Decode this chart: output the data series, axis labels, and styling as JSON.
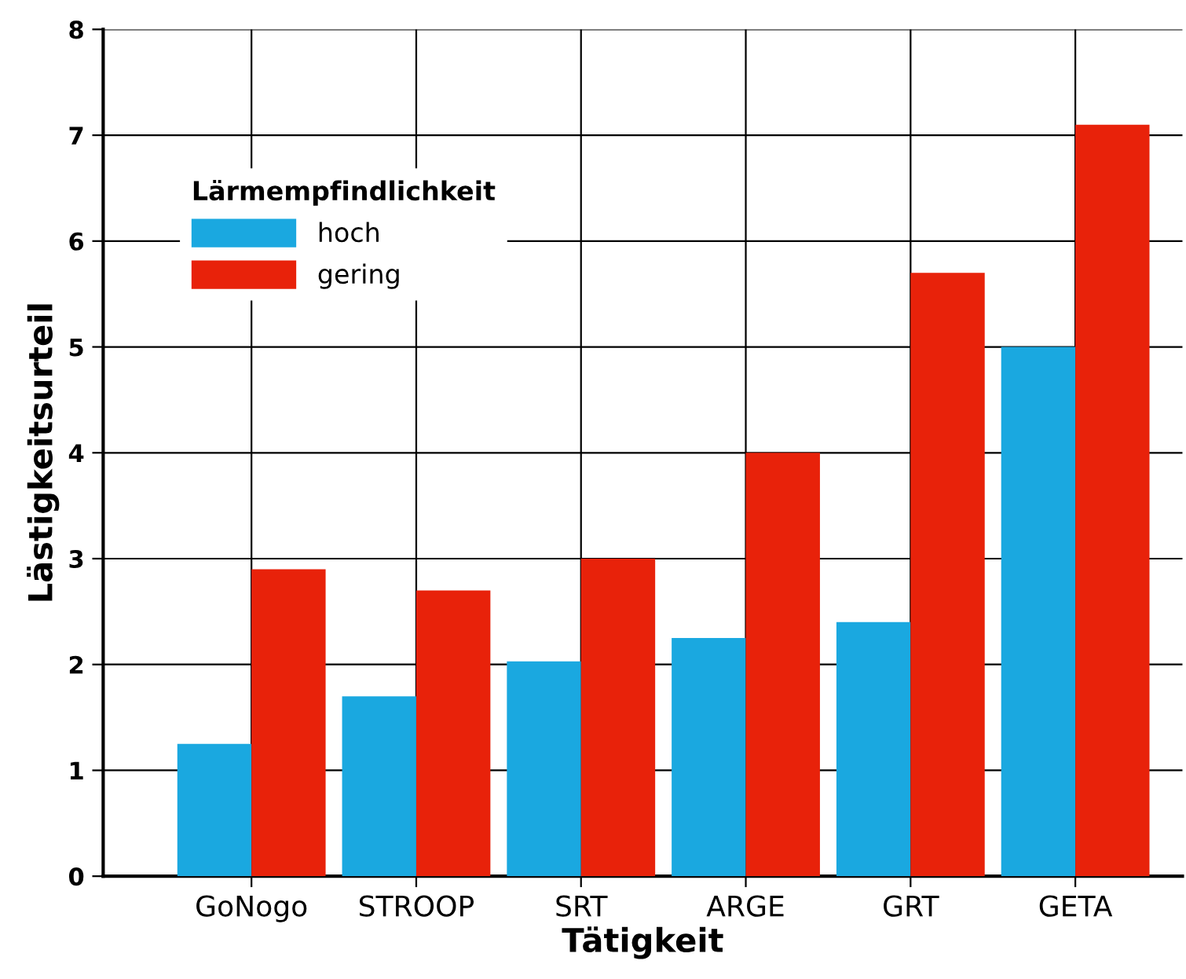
{
  "chart_data": {
    "type": "bar",
    "xlabel": "Tätigkeit",
    "ylabel": "Lästigkeitsurteil",
    "legend_title": "Lärmempfindlichkeit",
    "categories": [
      "GoNogo",
      "STROOP",
      "SRT",
      "ARGE",
      "GRT",
      "GETA"
    ],
    "series": [
      {
        "name": "hoch",
        "color": "#1aa8e0",
        "values": [
          1.25,
          1.7,
          2.03,
          2.25,
          2.4,
          5.0
        ]
      },
      {
        "name": "gering",
        "color": "#e8220a",
        "values": [
          2.9,
          2.7,
          3.0,
          4.0,
          5.7,
          7.1
        ]
      }
    ],
    "ylim": [
      0,
      8
    ],
    "yticks": [
      0,
      1,
      2,
      3,
      4,
      5,
      6,
      7,
      8
    ],
    "grid": true,
    "legend": "top left"
  }
}
